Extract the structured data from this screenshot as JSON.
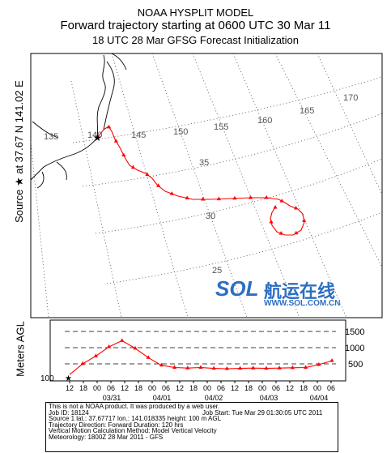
{
  "header": {
    "line1": "NOAA HYSPLIT MODEL",
    "line2": "Forward trajectory starting at 0600 UTC 30 Mar 11",
    "line3": "18 UTC 28 Mar   GFSG  Forecast Initialization"
  },
  "side_labels": {
    "source": "Source ★ at  37.67 N   141.02 E",
    "altitude": "Meters AGL"
  },
  "map": {
    "source_location": {
      "lat": 37.67,
      "lon": 141.02
    },
    "longitude_labels": [
      "135",
      "140",
      "145",
      "150",
      "155",
      "160",
      "165",
      "170"
    ],
    "latitude_labels": [
      "35",
      "30",
      "25"
    ],
    "trajectory_color": "#ff0000"
  },
  "chart_data": {
    "type": "line",
    "title": "",
    "xlabel": "",
    "ylabel": "Meters AGL",
    "y_ticks": [
      1500,
      1000,
      500
    ],
    "y_start_label": "100",
    "time_ticks": [
      "12",
      "18",
      "00",
      "06",
      "12",
      "18",
      "00",
      "06",
      "12",
      "18",
      "00",
      "06",
      "12",
      "18",
      "00",
      "06",
      "12",
      "18",
      "00",
      "06"
    ],
    "date_labels": [
      "03/31",
      "04/01",
      "04/02",
      "04/03",
      "04/04"
    ],
    "series": [
      {
        "x_hours": [
          0,
          6,
          12,
          18,
          24,
          30,
          36,
          42,
          48,
          54,
          60,
          66,
          72,
          78,
          84,
          90,
          96,
          102,
          108,
          114,
          120
        ],
        "values": [
          100,
          450,
          700,
          1000,
          1200,
          950,
          650,
          400,
          330,
          310,
          330,
          300,
          290,
          300,
          310,
          300,
          310,
          320,
          330,
          420,
          550
        ]
      }
    ]
  },
  "watermark": {
    "brand": "SOL",
    "chinese": "航运在线",
    "url": "WWW.SOL.COM.CN"
  },
  "info": {
    "line1": "This is not a NOAA product. It was produced by a web user.",
    "job_id": "Job ID: 18124",
    "job_start": "Job Start: Tue Mar 29 01:30:05 UTC 2011",
    "source": "Source 1     lat.: 37.67717   lon.: 141.018335    height: 100 m AGL",
    "direction": "Trajectory Direction: Forward      Duration: 120 hrs",
    "vertical": "Vertical Motion Calculation Method:      Model Vertical Velocity",
    "meteorology": "Meteorology: 1800Z 28 Mar 2011 - GFS"
  }
}
